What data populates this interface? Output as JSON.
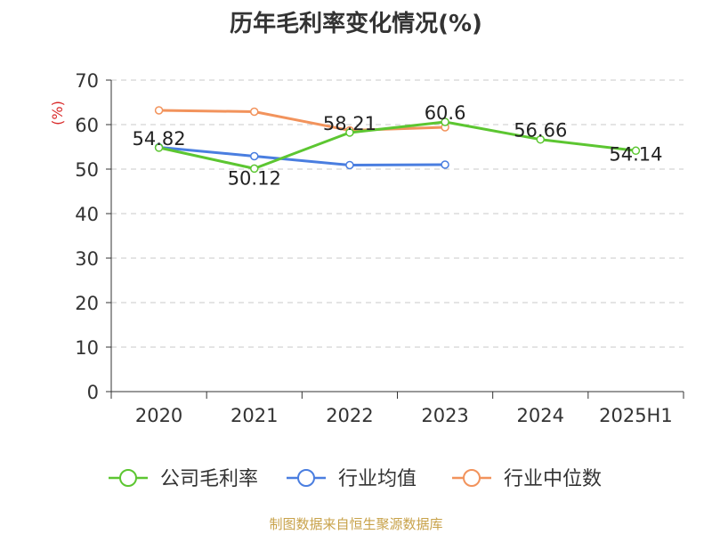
{
  "chart_data": {
    "type": "line",
    "title": "历年毛利率变化情况(%)",
    "ylabel": "(%)",
    "categories": [
      "2020",
      "2021",
      "2022",
      "2023",
      "2024",
      "2025H1"
    ],
    "ylim": [
      0,
      70
    ],
    "yticks": [
      "0",
      "10",
      "20",
      "30",
      "40",
      "50",
      "60",
      "70"
    ],
    "grid": true,
    "legend_position": "bottom",
    "series": [
      {
        "name": "公司毛利率",
        "color": "#5cc631",
        "values": [
          54.82,
          50.12,
          58.21,
          60.6,
          56.66,
          54.14
        ],
        "labels": [
          "54.82",
          "50.12",
          "58.21",
          "60.6",
          "56.66",
          "54.14"
        ]
      },
      {
        "name": "行业均值",
        "color": "#4a7ee0",
        "values": [
          54.9,
          52.9,
          50.9,
          51.0,
          null,
          null
        ]
      },
      {
        "name": "行业中位数",
        "color": "#f2935c",
        "values": [
          63.2,
          62.9,
          58.7,
          59.4,
          null,
          null
        ]
      }
    ]
  },
  "footer": {
    "source": "制图数据来自恒生聚源数据库"
  }
}
